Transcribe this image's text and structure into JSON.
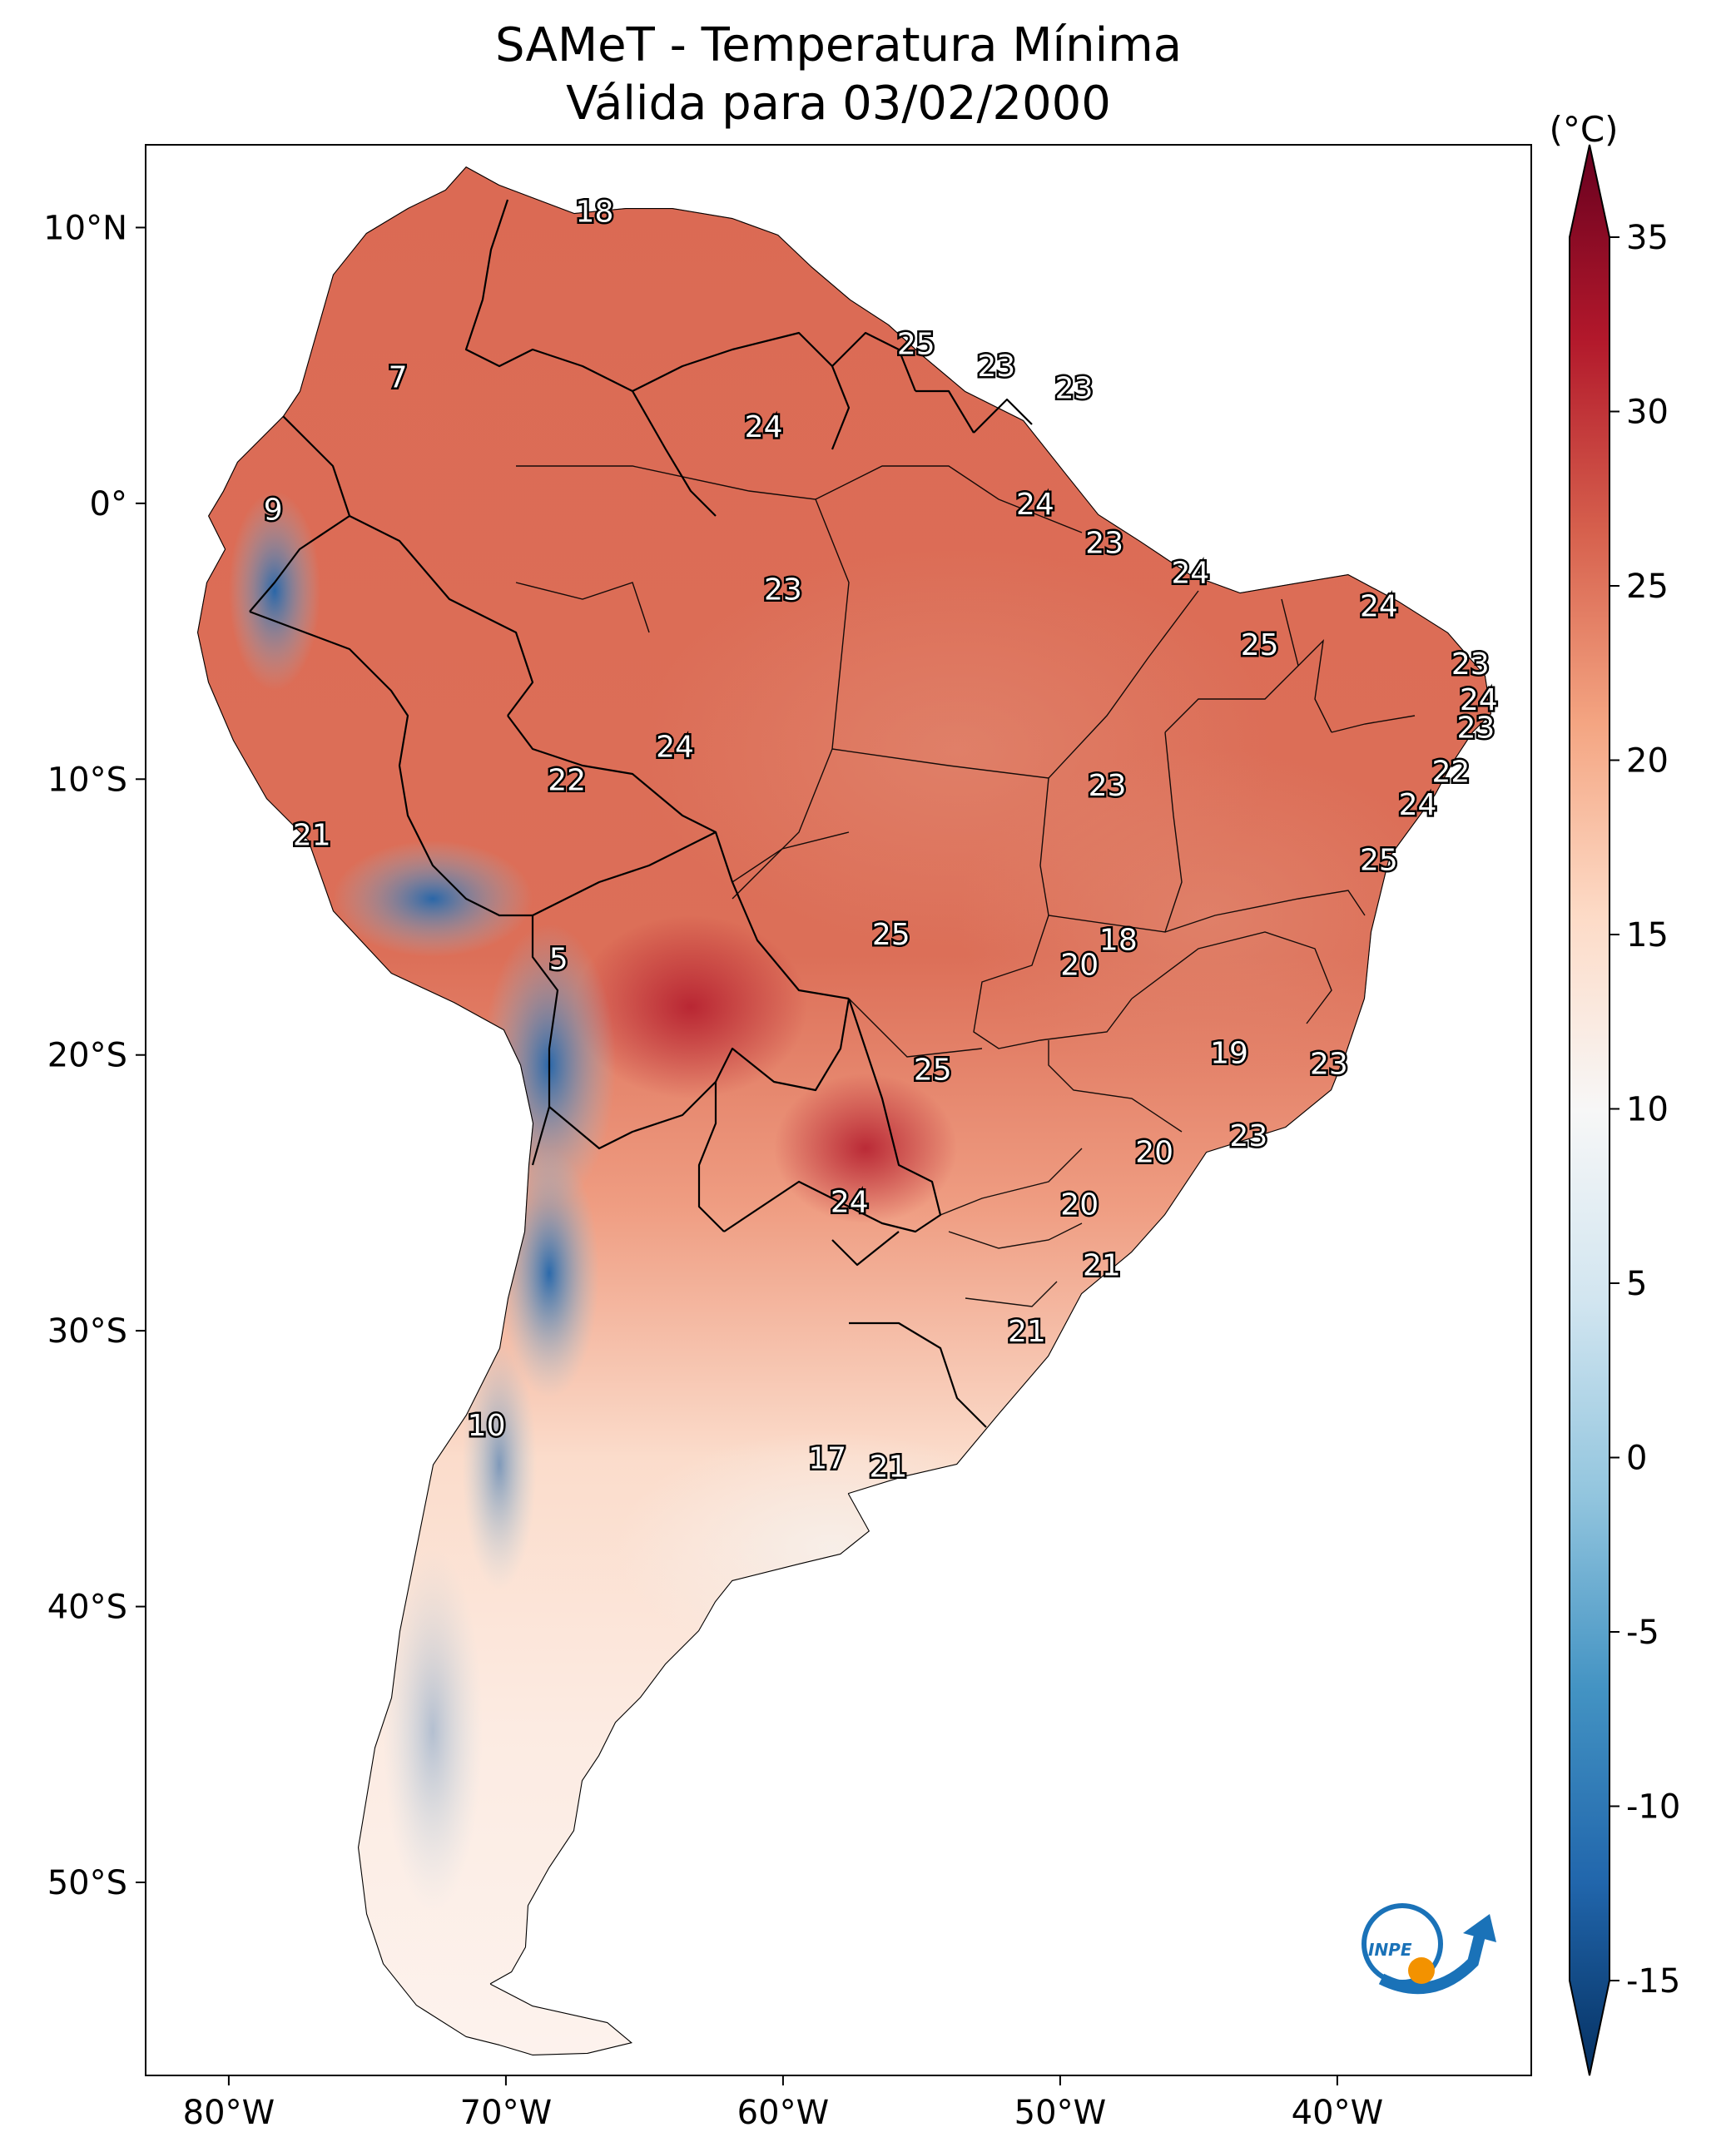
{
  "title": {
    "line1": "SAMeT - Temperatura Mínima",
    "line2": "Válida para 03/02/2000"
  },
  "map": {
    "extent_lon": [
      -83,
      -33
    ],
    "extent_lat": [
      -57,
      13
    ],
    "lon_ticks": [
      {
        "value": -80,
        "label": "80°W"
      },
      {
        "value": -70,
        "label": "70°W"
      },
      {
        "value": -60,
        "label": "60°W"
      },
      {
        "value": -50,
        "label": "50°W"
      },
      {
        "value": -40,
        "label": "40°W"
      }
    ],
    "lat_ticks": [
      {
        "value": 10,
        "label": "10°N"
      },
      {
        "value": 0,
        "label": "0°"
      },
      {
        "value": -10,
        "label": "10°S"
      },
      {
        "value": -20,
        "label": "20°S"
      },
      {
        "value": -30,
        "label": "30°S"
      },
      {
        "value": -40,
        "label": "40°S"
      },
      {
        "value": -50,
        "label": "50°S"
      }
    ],
    "labels": [
      {
        "lon": -66.8,
        "lat": 10.6,
        "text": "18"
      },
      {
        "lon": -73.9,
        "lat": 4.6,
        "text": "7"
      },
      {
        "lon": -78.4,
        "lat": -0.2,
        "text": "9"
      },
      {
        "lon": -55.2,
        "lat": 5.8,
        "text": "25"
      },
      {
        "lon": -52.3,
        "lat": 5.0,
        "text": "23"
      },
      {
        "lon": -49.5,
        "lat": 4.2,
        "text": "23"
      },
      {
        "lon": -60.7,
        "lat": 2.8,
        "text": "24"
      },
      {
        "lon": -50.9,
        "lat": 0.0,
        "text": "24"
      },
      {
        "lon": -48.4,
        "lat": -1.4,
        "text": "23"
      },
      {
        "lon": -60.0,
        "lat": -3.1,
        "text": "23"
      },
      {
        "lon": -45.3,
        "lat": -2.5,
        "text": "24"
      },
      {
        "lon": -38.5,
        "lat": -3.7,
        "text": "24"
      },
      {
        "lon": -42.8,
        "lat": -5.1,
        "text": "25"
      },
      {
        "lon": -35.2,
        "lat": -5.8,
        "text": "23"
      },
      {
        "lon": -34.9,
        "lat": -7.1,
        "text": "24"
      },
      {
        "lon": -35.0,
        "lat": -8.1,
        "text": "23"
      },
      {
        "lon": -35.9,
        "lat": -9.7,
        "text": "22"
      },
      {
        "lon": -37.1,
        "lat": -10.9,
        "text": "24"
      },
      {
        "lon": -38.5,
        "lat": -12.9,
        "text": "25"
      },
      {
        "lon": -63.9,
        "lat": -8.8,
        "text": "24"
      },
      {
        "lon": -67.8,
        "lat": -10.0,
        "text": "22"
      },
      {
        "lon": -48.3,
        "lat": -10.2,
        "text": "23"
      },
      {
        "lon": -77.0,
        "lat": -12.0,
        "text": "21"
      },
      {
        "lon": -56.1,
        "lat": -15.6,
        "text": "25"
      },
      {
        "lon": -47.9,
        "lat": -15.8,
        "text": "18"
      },
      {
        "lon": -49.3,
        "lat": -16.7,
        "text": "20"
      },
      {
        "lon": -68.1,
        "lat": -16.5,
        "text": "5"
      },
      {
        "lon": -43.9,
        "lat": -19.9,
        "text": "19"
      },
      {
        "lon": -54.6,
        "lat": -20.5,
        "text": "25"
      },
      {
        "lon": -40.3,
        "lat": -20.3,
        "text": "23"
      },
      {
        "lon": -43.2,
        "lat": -22.9,
        "text": "23"
      },
      {
        "lon": -46.6,
        "lat": -23.5,
        "text": "20"
      },
      {
        "lon": -57.6,
        "lat": -25.3,
        "text": "24"
      },
      {
        "lon": -49.3,
        "lat": -25.4,
        "text": "20"
      },
      {
        "lon": -48.5,
        "lat": -27.6,
        "text": "21"
      },
      {
        "lon": -51.2,
        "lat": -30.0,
        "text": "21"
      },
      {
        "lon": -70.7,
        "lat": -33.4,
        "text": "10"
      },
      {
        "lon": -58.4,
        "lat": -34.6,
        "text": "17"
      },
      {
        "lon": -56.2,
        "lat": -34.9,
        "text": "21"
      }
    ]
  },
  "colorbar": {
    "unit": "(°C)",
    "range": [
      -15,
      35
    ],
    "ticks": [
      "35",
      "30",
      "25",
      "20",
      "15",
      "10",
      "5",
      "0",
      "-5",
      "-10",
      "-15"
    ],
    "colors": [
      "#053061",
      "#2166ac",
      "#4393c3",
      "#92c5de",
      "#d1e5f0",
      "#f7f7f7",
      "#fddbc7",
      "#f4a582",
      "#d6604d",
      "#b2182b",
      "#67001f"
    ]
  },
  "logo": {
    "text": "INPE",
    "colors": [
      "#1a72b8",
      "#f39200"
    ]
  }
}
